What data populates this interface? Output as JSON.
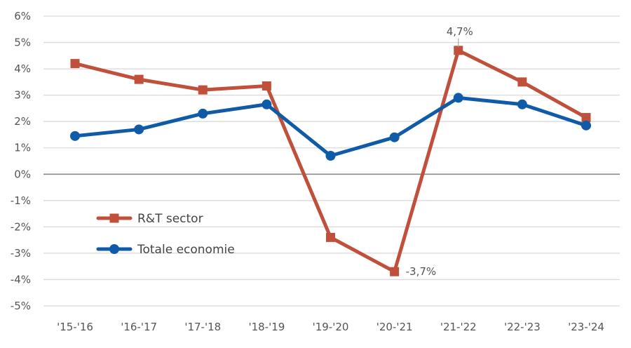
{
  "chart_data": {
    "type": "line",
    "title": "",
    "xlabel": "",
    "ylabel": "",
    "categories": [
      "'15-'16",
      "'16-'17",
      "'17-'18",
      "'18-'19",
      "'19-'20",
      "'20-'21",
      "'21-'22",
      "'22-'23",
      "'23-'24"
    ],
    "ylim": [
      -5,
      6
    ],
    "yticks": [
      6,
      5,
      4,
      3,
      2,
      1,
      0,
      -1,
      -2,
      -3,
      -4,
      -5
    ],
    "ytick_labels": [
      "6%",
      "5%",
      "4%",
      "3%",
      "2%",
      "1%",
      "0%",
      "-1%",
      "-2%",
      "-3%",
      "-4%",
      "-5%"
    ],
    "grid": true,
    "legend_position": "lower-left",
    "series": [
      {
        "name": "R&T sector",
        "color": "#C0503C",
        "marker": "square",
        "values": [
          4.2,
          3.6,
          3.2,
          3.35,
          -2.4,
          -3.7,
          4.7,
          3.5,
          2.15
        ]
      },
      {
        "name": "Totale economie",
        "color": "#0F5BA7",
        "marker": "circle",
        "values": [
          1.45,
          1.7,
          2.3,
          2.65,
          0.7,
          1.4,
          2.9,
          2.65,
          1.85
        ]
      }
    ],
    "annotations": [
      {
        "series": 0,
        "index": 6,
        "text": "4,7%",
        "position": "above"
      },
      {
        "series": 0,
        "index": 5,
        "text": "-3,7%",
        "position": "right"
      }
    ]
  }
}
